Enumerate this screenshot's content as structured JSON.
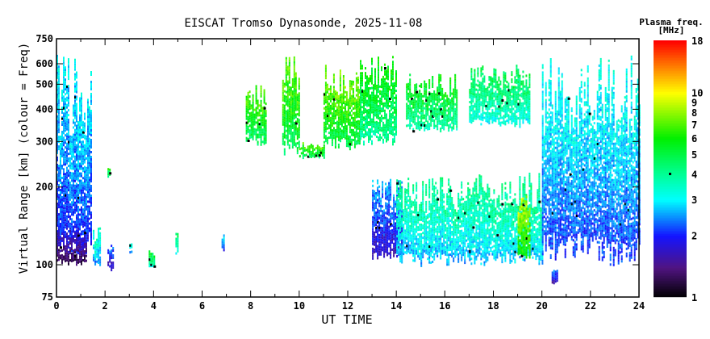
{
  "chart_data": {
    "type": "heatmap",
    "title": "EISCAT Tromso Dynasonde, 2025-11-08",
    "xlabel": "UT TIME",
    "ylabel": "Virtual Range [km] (colour = Freq)",
    "xlim": [
      0,
      24
    ],
    "ylim": [
      75,
      750
    ],
    "yscale": "log",
    "x_ticks": [
      "0",
      "2",
      "4",
      "6",
      "8",
      "10",
      "12",
      "14",
      "16",
      "18",
      "20",
      "22",
      "24"
    ],
    "y_ticks": [
      {
        "value": 75,
        "label": "75"
      },
      {
        "value": 100,
        "label": "100"
      },
      {
        "value": 200,
        "label": "200"
      },
      {
        "value": 300,
        "label": "300"
      },
      {
        "value": 400,
        "label": "400"
      },
      {
        "value": 500,
        "label": "500"
      },
      {
        "value": 600,
        "label": "600"
      },
      {
        "value": 750,
        "label": "750"
      }
    ],
    "colorbar": {
      "title": "Plasma freq.",
      "unit": "[MHz]",
      "range": [
        1,
        18
      ],
      "scale": "log",
      "ticks": [
        {
          "value": 1,
          "label": "1"
        },
        {
          "value": 2,
          "label": "2"
        },
        {
          "value": 3,
          "label": "3"
        },
        {
          "value": 4,
          "label": "4"
        },
        {
          "value": 5,
          "label": "5"
        },
        {
          "value": 6,
          "label": "6"
        },
        {
          "value": 7,
          "label": "7"
        },
        {
          "value": 8,
          "label": "8"
        },
        {
          "value": 9,
          "label": "9"
        },
        {
          "value": 10,
          "label": "10"
        },
        {
          "value": 18,
          "label": "18"
        }
      ],
      "marker_value": 4
    },
    "echo_regions": [
      {
        "t": [
          0.0,
          1.4
        ],
        "h": [
          105,
          650
        ],
        "f": 2.6
      },
      {
        "t": [
          0.0,
          1.2
        ],
        "h": [
          100,
          140
        ],
        "f": 1.6
      },
      {
        "t": [
          1.5,
          1.8
        ],
        "h": [
          100,
          140
        ],
        "f": 3.2
      },
      {
        "t": [
          2.1,
          2.3
        ],
        "h": [
          95,
          120
        ],
        "f": 2.0
      },
      {
        "t": [
          2.1,
          2.2
        ],
        "h": [
          220,
          240
        ],
        "f": 5.0
      },
      {
        "t": [
          3.0,
          3.1
        ],
        "h": [
          110,
          122
        ],
        "f": 3.0
      },
      {
        "t": [
          3.8,
          4.0
        ],
        "h": [
          97,
          115
        ],
        "f": 4.5
      },
      {
        "t": [
          4.9,
          5.0
        ],
        "h": [
          107,
          150
        ],
        "f": 4.0
      },
      {
        "t": [
          6.8,
          6.9
        ],
        "h": [
          115,
          135
        ],
        "f": 2.6
      },
      {
        "t": [
          7.8,
          8.6
        ],
        "h": [
          290,
          500
        ],
        "f": 6.0
      },
      {
        "t": [
          9.3,
          10.0
        ],
        "h": [
          270,
          650
        ],
        "f": 6.2
      },
      {
        "t": [
          10.0,
          11.0
        ],
        "h": [
          260,
          300
        ],
        "f": 6.0
      },
      {
        "t": [
          11.0,
          12.5
        ],
        "h": [
          280,
          600
        ],
        "f": 6.5
      },
      {
        "t": [
          12.5,
          14.0
        ],
        "h": [
          290,
          650
        ],
        "f": 5.2
      },
      {
        "t": [
          13.0,
          14.2
        ],
        "h": [
          105,
          220
        ],
        "f": 2.2
      },
      {
        "t": [
          14.0,
          17.0
        ],
        "h": [
          100,
          220
        ],
        "f": 3.5
      },
      {
        "t": [
          14.4,
          16.5
        ],
        "h": [
          330,
          550
        ],
        "f": 5.0
      },
      {
        "t": [
          17.0,
          19.5
        ],
        "h": [
          340,
          600
        ],
        "f": 4.2
      },
      {
        "t": [
          17.0,
          20.0
        ],
        "h": [
          100,
          230
        ],
        "f": 3.6
      },
      {
        "t": [
          19.0,
          19.5
        ],
        "h": [
          105,
          200
        ],
        "f": 7.5
      },
      {
        "t": [
          20.0,
          24.0
        ],
        "h": [
          100,
          650
        ],
        "f": 2.8
      },
      {
        "t": [
          20.4,
          20.6
        ],
        "h": [
          85,
          100
        ],
        "f": 2.0
      }
    ]
  }
}
